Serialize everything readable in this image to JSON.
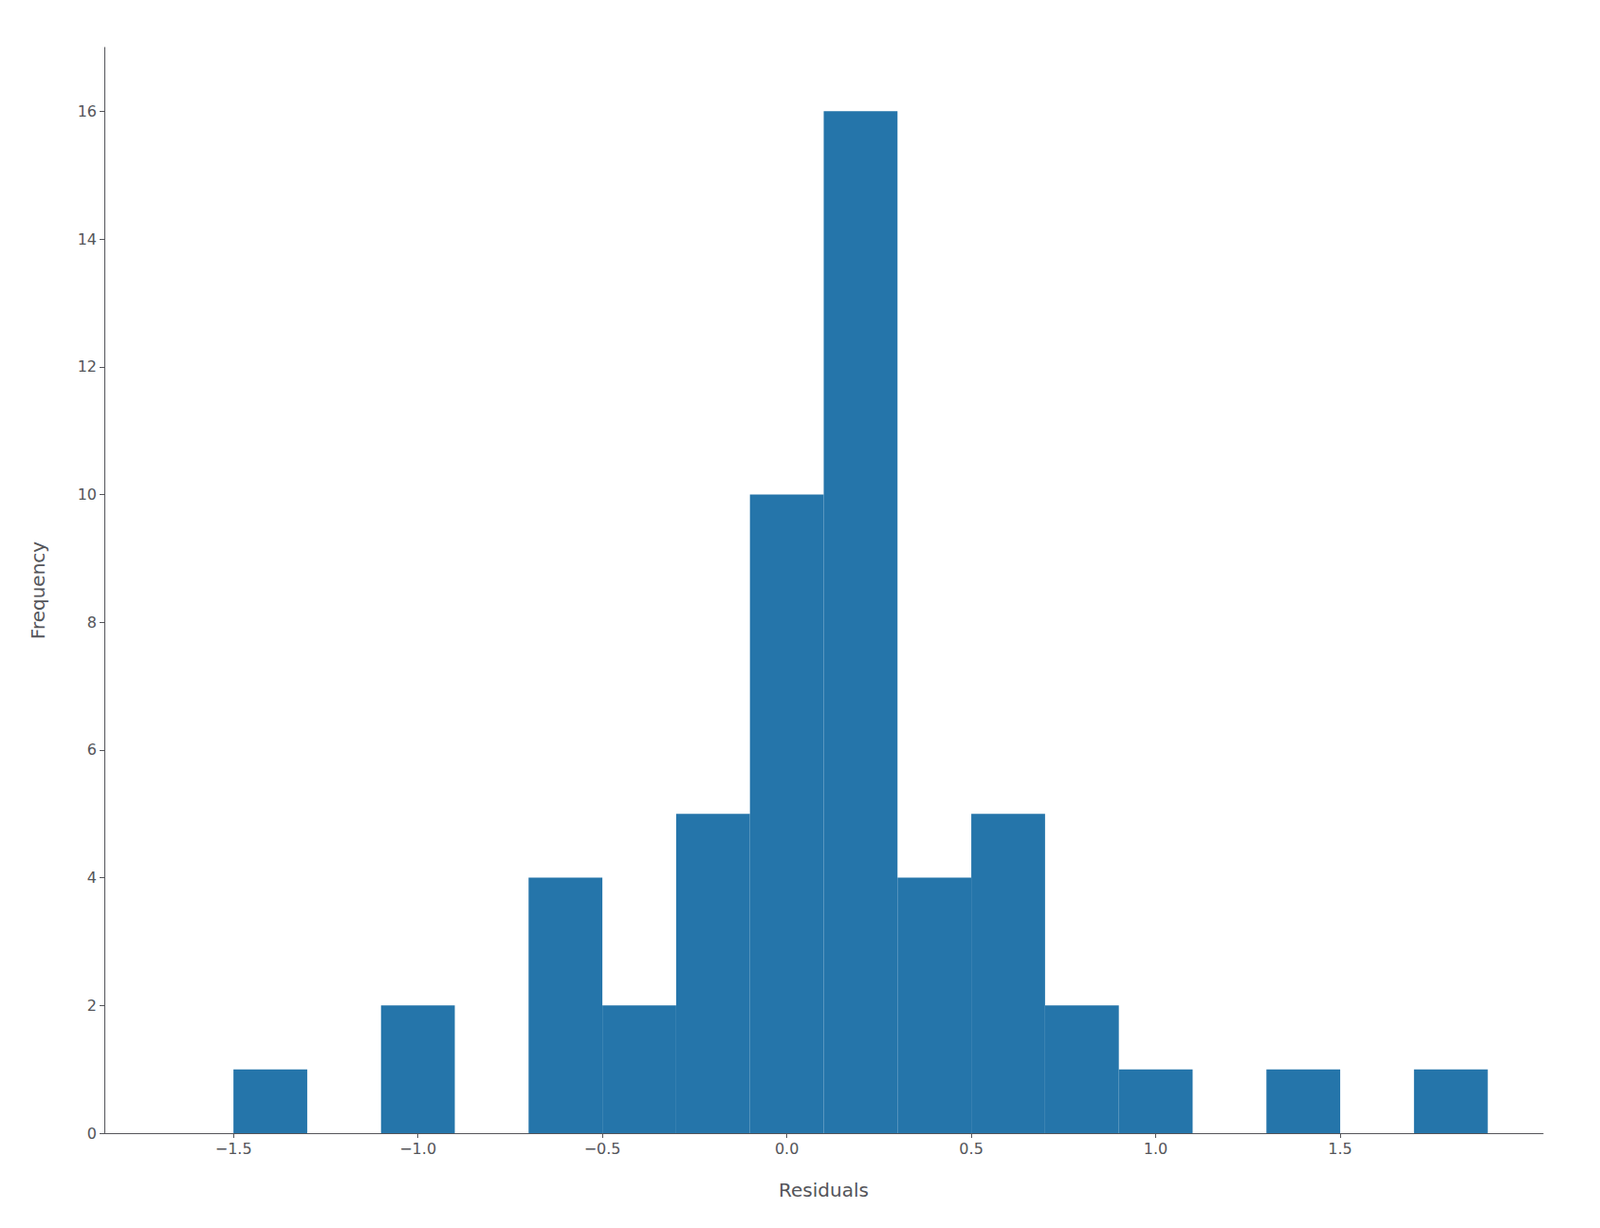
{
  "chart_data": {
    "type": "histogram",
    "xlabel": "Residuals",
    "ylabel": "Frequency",
    "color": "#2575aa",
    "bins": [
      -1.7,
      -1.5,
      -1.3,
      -1.1,
      -0.9,
      -0.7,
      -0.5,
      -0.3,
      -0.1,
      0.1,
      0.3,
      0.5,
      0.7,
      0.9,
      1.1,
      1.3,
      1.5,
      1.7,
      1.9
    ],
    "counts": [
      0,
      1,
      0,
      2,
      0,
      4,
      2,
      5,
      10,
      16,
      4,
      5,
      2,
      1,
      0,
      1,
      0,
      1
    ],
    "xlim": [
      -1.85,
      2.05
    ],
    "xticks": [
      {
        "value": -1.5,
        "label": "−1.5"
      },
      {
        "value": -1.0,
        "label": "−1.0"
      },
      {
        "value": -0.5,
        "label": "−0.5"
      },
      {
        "value": 0.0,
        "label": "0.0"
      },
      0.5,
      {
        "value": 1.0,
        "label": "1.0"
      },
      1.5
    ],
    "ylim": [
      0,
      17
    ],
    "yticks": [
      0,
      2,
      4,
      6,
      8,
      10,
      12,
      14,
      16
    ],
    "grid": false
  }
}
